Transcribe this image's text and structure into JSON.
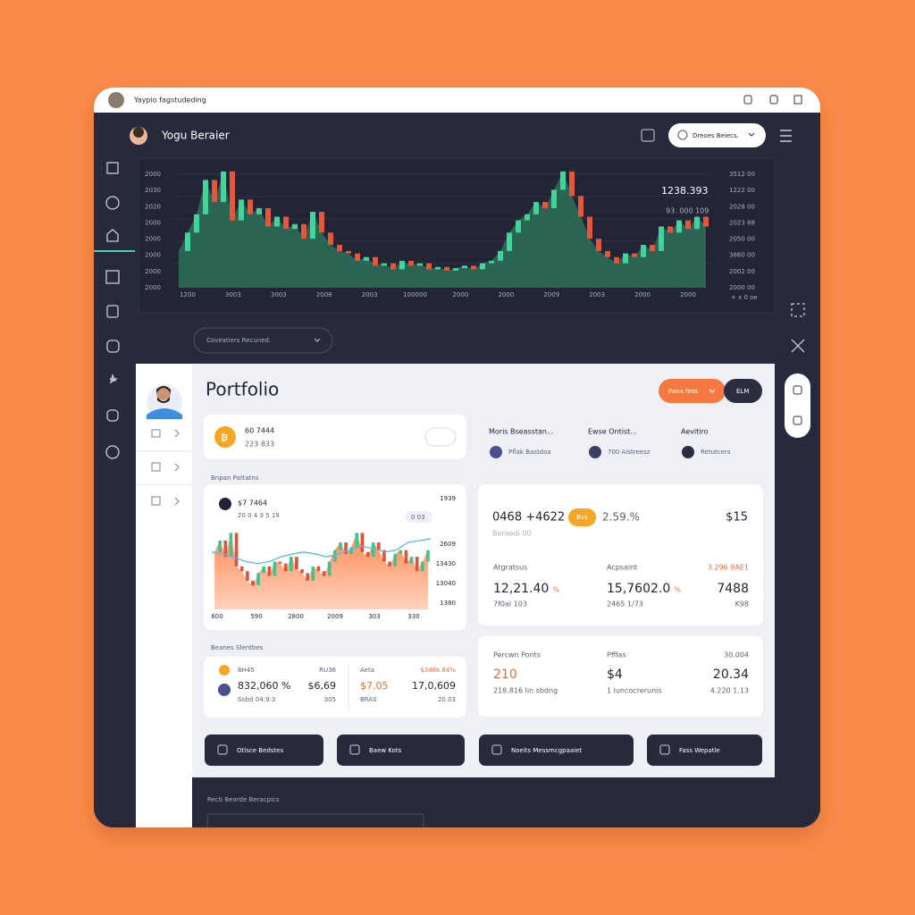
{
  "window": {
    "title": "Yaypio fagstudeding"
  },
  "header": {
    "user": "Yogu Beraier",
    "account_menu": "Dreoes Beiecs."
  },
  "market_chart": {
    "type": "candlestick",
    "values": [
      30,
      45,
      60,
      88,
      70,
      95,
      55,
      72,
      60,
      65,
      50,
      58,
      48,
      52,
      40,
      62,
      45,
      35,
      30,
      28,
      22,
      25,
      18,
      20,
      15,
      22,
      18,
      20,
      15,
      17,
      14,
      16,
      18,
      15,
      20,
      22,
      30,
      45,
      55,
      60,
      70,
      65,
      80,
      95,
      75,
      58,
      40,
      30,
      25,
      20,
      28,
      25,
      35,
      30,
      50,
      45,
      55,
      48,
      58,
      50
    ],
    "ylim": [
      0,
      100
    ],
    "y_labels_left": [
      "2000",
      "2030",
      "2020",
      "2000",
      "2000",
      "2000",
      "2000",
      "2000"
    ],
    "y_labels_right": [
      "3512 00",
      "1222 00",
      "2028 00",
      "2023 88",
      "2050 00",
      "3860 00",
      "2002 00",
      "2000 00"
    ],
    "x_labels": [
      "1200",
      "3003",
      "3003",
      "2008",
      "2003",
      "100000",
      "2000",
      "2000",
      "2009",
      "2003",
      "2000",
      "2000"
    ],
    "price": "1238.393",
    "price_sub": "93. 000 109",
    "corner_label": "+ x 0 oe"
  },
  "range_selector": "Coveatiers Recuned.",
  "portfolio": {
    "title": "Portfolio",
    "filter_button": "Paea fess",
    "action_button": "ELM",
    "asset": {
      "value": "60 7444",
      "sub": "223 833"
    },
    "stats": [
      {
        "label": "Moris Bseasstan...",
        "value": "Pflak Bastdoa"
      },
      {
        "label": "Ewse Ontist...",
        "value": "700 Aistreesz"
      },
      {
        "label": "Aevitiro",
        "value": "Retutcers"
      }
    ],
    "chart_section": "Bnpan Pattatns",
    "mini_chart": {
      "type": "candlestick",
      "values": [
        60,
        72,
        55,
        80,
        45,
        40,
        30,
        25,
        38,
        45,
        35,
        50,
        48,
        40,
        55,
        42,
        38,
        30,
        45,
        40,
        35,
        50,
        62,
        70,
        58,
        65,
        80,
        60,
        55,
        70,
        62,
        50,
        45,
        58,
        62,
        48,
        55,
        40,
        50,
        62
      ],
      "trend": [
        60,
        58,
        54,
        50,
        48,
        50,
        55,
        58,
        60,
        58,
        55,
        58,
        62,
        66,
        64,
        60,
        62,
        70,
        72,
        74
      ],
      "ylim": [
        0,
        100
      ],
      "title": "$7 7464",
      "subtitle": "20 0 4 3 5 19",
      "badge": "0 03",
      "y_labels": [
        "1939",
        "2609",
        "13430",
        "13040",
        "1380"
      ],
      "x_labels": [
        "600",
        "590",
        "2800",
        "2009",
        "303",
        "330"
      ]
    },
    "table": {
      "title": "Beanes Slentbes",
      "rows": [
        [
          "8H45",
          "RU36",
          "Aeta",
          "$346k.84%"
        ],
        [
          "832,060 %",
          "$6,69",
          "$7.05",
          "17,0,609"
        ],
        [
          "Sobd 04:9:3",
          "305",
          "BRAS",
          "20.03"
        ]
      ]
    },
    "summary": {
      "value": "0468 +4622",
      "badge": "Bvs",
      "change": "2.59.%",
      "right": "$15",
      "sub": "Beraedi 00",
      "columns": [
        {
          "label": "Atgratsus",
          "value": "12,21.40",
          "delta": "%",
          "sub": "7f0al 103"
        },
        {
          "label": "Acpsaint",
          "value": "15,7602.0",
          "delta": "%",
          "sub": "2465 1/73"
        },
        {
          "label": "3.296 9AE1",
          "value": "7488",
          "sub": "K98"
        }
      ]
    },
    "points": {
      "columns": [
        {
          "label": "Percwn Ponts",
          "value": "210",
          "sub": "218.816 lin sbdng"
        },
        {
          "label": "Pfflas",
          "value": "$4",
          "sub": "1 luncocrerunis"
        },
        {
          "label": "30.004",
          "value": "20.34",
          "sub": "4.220 1.13"
        }
      ]
    },
    "buttons": [
      "Otlsce Bedstes",
      "Baew Kots",
      "Noeits Messmcgpaaiet",
      "Fass Wepatle"
    ]
  },
  "footer": {
    "title": "Recb Beorde Beracpics"
  }
}
